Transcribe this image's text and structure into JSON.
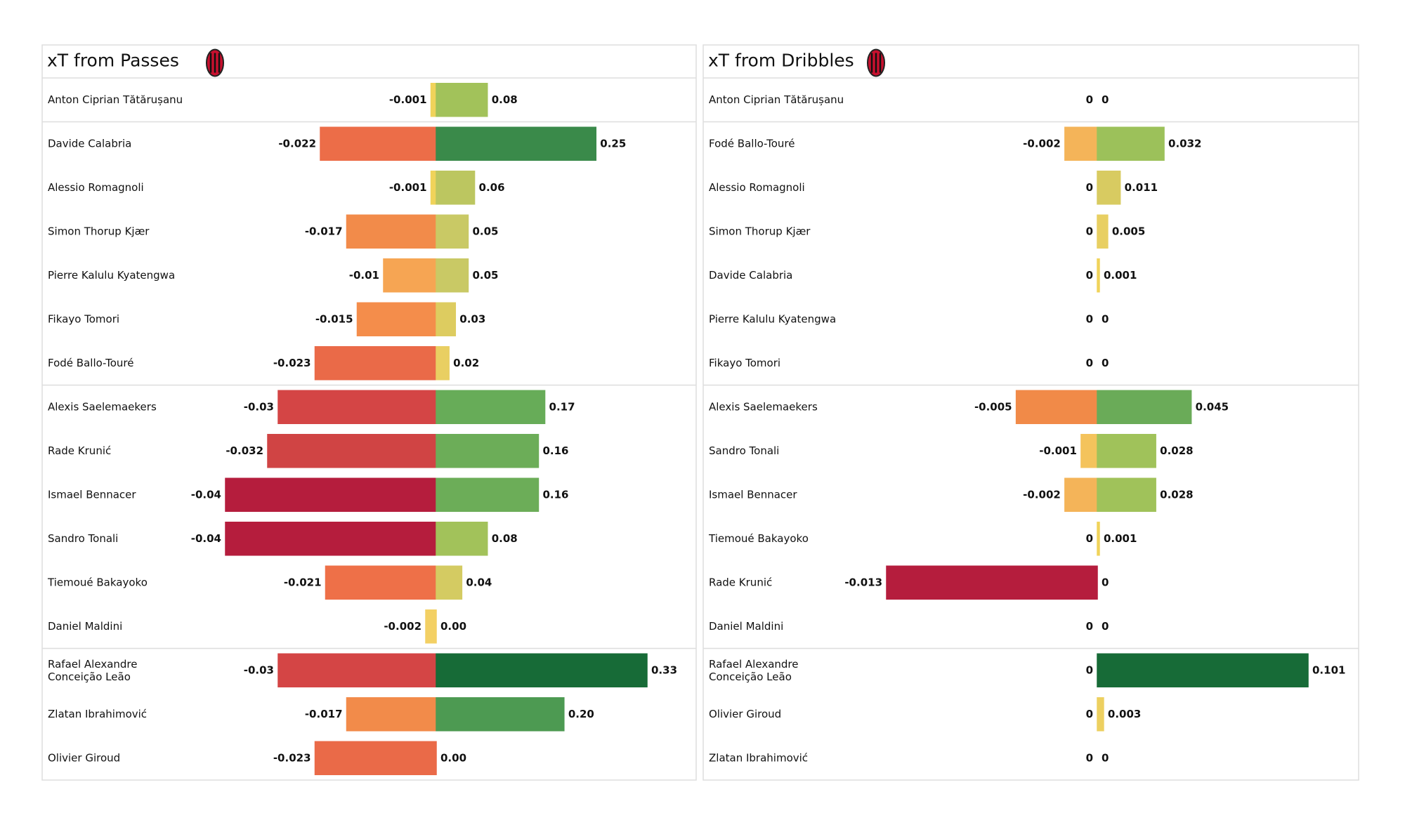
{
  "chart_data": [
    {
      "type": "diverging-bar",
      "title": "xT from Passes",
      "categories": [
        "Anton Ciprian Tătărușanu",
        "Davide Calabria",
        "Alessio Romagnoli",
        "Simon Thorup Kjær",
        "Pierre Kalulu Kyatengwa",
        "Fikayo Tomori",
        "Fodé  Ballo-Touré",
        "Alexis Saelemaekers",
        "Rade Krunić",
        "Ismael Bennacer",
        "Sandro Tonali",
        "Tiemoué Bakayoko",
        "Daniel Maldini",
        "Rafael Alexandre\nConceição Leão",
        "Zlatan Ibrahimović",
        "Olivier Giroud"
      ],
      "series": [
        {
          "values": [
            -0.001,
            -0.022,
            -0.001,
            -0.017,
            -0.01,
            -0.015,
            -0.023,
            -0.03,
            -0.032,
            -0.04,
            -0.04,
            -0.021,
            -0.002,
            -0.03,
            -0.017,
            -0.023
          ],
          "colors": [
            "#f0d35a",
            "#ec6d48",
            "#f0d35a",
            "#f28b4a",
            "#f6a553",
            "#f48d4b",
            "#ea6a48",
            "#d44545",
            "#d04444",
            "#b51d3d",
            "#b51d3d",
            "#ee7048",
            "#f3d064",
            "#d44545",
            "#f28b4a",
            "#ea6a48"
          ],
          "xlim": [
            -0.04,
            0
          ]
        },
        {
          "values": [
            0.08,
            0.25,
            0.06,
            0.05,
            0.05,
            0.03,
            0.02,
            0.17,
            0.16,
            0.16,
            0.08,
            0.04,
            0,
            0.33,
            0.2,
            0
          ],
          "value_labels": [
            "0.08",
            "0.25",
            "0.06",
            "0.05",
            "0.05",
            "0.03",
            "0.02",
            "0.17",
            "0.16",
            "0.16",
            "0.08",
            "0.04",
            "0.00",
            "0.33",
            "0.20",
            "0.00"
          ],
          "colors": [
            "#a2c25a",
            "#3a8a4a",
            "#bcc660",
            "#c9c965",
            "#c9c965",
            "#ddcc60",
            "#e9cf62",
            "#67ac58",
            "#6cad58",
            "#6cad58",
            "#a2c25a",
            "#d4cb62",
            "#f0d35a",
            "#176b37",
            "#4d9a52",
            "#f0d35a"
          ],
          "xlim": [
            0,
            0.33
          ]
        }
      ]
    },
    {
      "type": "diverging-bar",
      "title": "xT from Dribbles",
      "categories": [
        "Anton Ciprian Tătărușanu",
        "Fodé  Ballo-Touré",
        "Alessio Romagnoli",
        "Simon Thorup Kjær",
        "Davide Calabria",
        "Pierre Kalulu Kyatengwa",
        "Fikayo Tomori",
        "Alexis Saelemaekers",
        "Sandro Tonali",
        "Ismael Bennacer",
        "Tiemoué Bakayoko",
        "Rade Krunić",
        "Daniel Maldini",
        "Rafael Alexandre\nConceição Leão",
        "Olivier Giroud",
        "Zlatan Ibrahimović"
      ],
      "series": [
        {
          "values": [
            0,
            -0.002,
            0,
            0,
            0,
            0,
            0,
            -0.005,
            -0.001,
            -0.002,
            0,
            -0.013,
            0,
            0,
            0,
            0
          ],
          "colors": [
            "#f0d35a",
            "#f4b459",
            "#f0d35a",
            "#f0d35a",
            "#f0d35a",
            "#f0d35a",
            "#f0d35a",
            "#f18a48",
            "#f4c35c",
            "#f4b459",
            "#f0d35a",
            "#b51d3d",
            "#f0d35a",
            "#f0d35a",
            "#f0d35a",
            "#f0d35a"
          ],
          "xlim": [
            -0.013,
            0
          ]
        },
        {
          "values": [
            0,
            0.032,
            0.011,
            0.005,
            0.001,
            0,
            0,
            0.045,
            0.028,
            0.028,
            0.001,
            0,
            0,
            0.101,
            0.003,
            0
          ],
          "colors": [
            "#f0d35a",
            "#9cc15a",
            "#d8cb61",
            "#e8cf62",
            "#f0d35a",
            "#f0d35a",
            "#f0d35a",
            "#6aab58",
            "#a0c25a",
            "#a0c25a",
            "#f0d35a",
            "#f0d35a",
            "#f0d35a",
            "#176b37",
            "#edd060",
            "#f0d35a"
          ],
          "xlim": [
            0,
            0.101
          ]
        }
      ]
    }
  ]
}
